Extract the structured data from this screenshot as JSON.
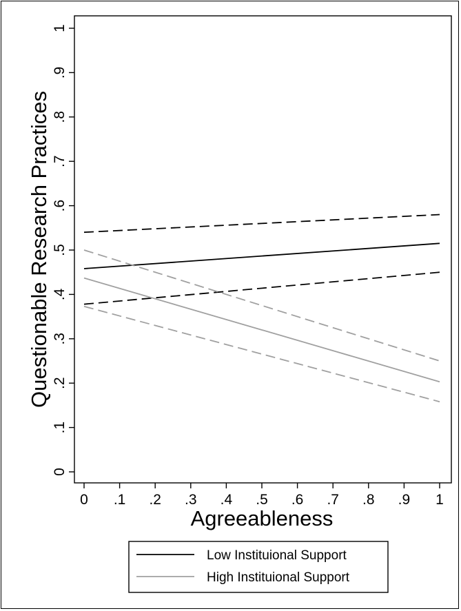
{
  "chart_data": {
    "type": "line",
    "xlabel": "Agreeableness",
    "ylabel": "Questionable Research Practices",
    "xlim": [
      0,
      1
    ],
    "ylim": [
      0,
      1
    ],
    "x_ticks": [
      0,
      0.1,
      0.2,
      0.3,
      0.4,
      0.5,
      0.6,
      0.7,
      0.8,
      0.9,
      1
    ],
    "x_tick_labels": [
      "0",
      ".1",
      ".2",
      ".3",
      ".4",
      ".5",
      ".6",
      ".7",
      ".8",
      ".9",
      "1"
    ],
    "y_ticks": [
      0,
      0.1,
      0.2,
      0.3,
      0.4,
      0.5,
      0.6,
      0.7,
      0.8,
      0.9,
      1
    ],
    "y_tick_labels": [
      "0",
      ".1",
      ".2",
      ".3",
      ".4",
      ".5",
      ".6",
      ".7",
      ".8",
      ".9",
      "1"
    ],
    "grid": false,
    "legend_position": "bottom",
    "series": [
      {
        "name": "Low Instituional Support",
        "color": "#000000",
        "dash": "solid",
        "x": [
          0,
          1
        ],
        "y": [
          0.458,
          0.515
        ]
      },
      {
        "color": "#000000",
        "dash": "dashed",
        "x": [
          0,
          1
        ],
        "y": [
          0.54,
          0.58
        ]
      },
      {
        "color": "#000000",
        "dash": "dashed",
        "x": [
          0,
          1
        ],
        "y": [
          0.378,
          0.45
        ]
      },
      {
        "name": "High Instituional Support",
        "color": "#a0a0a0",
        "dash": "solid",
        "x": [
          0,
          1
        ],
        "y": [
          0.437,
          0.203
        ]
      },
      {
        "color": "#a0a0a0",
        "dash": "dashed",
        "x": [
          0,
          1
        ],
        "y": [
          0.5,
          0.25
        ]
      },
      {
        "color": "#a0a0a0",
        "dash": "dashed",
        "x": [
          0,
          1
        ],
        "y": [
          0.373,
          0.158
        ]
      }
    ],
    "legend": [
      {
        "label": "Low Instituional Support",
        "color": "#000000"
      },
      {
        "label": "High Instituional Support",
        "color": "#a0a0a0"
      }
    ]
  }
}
